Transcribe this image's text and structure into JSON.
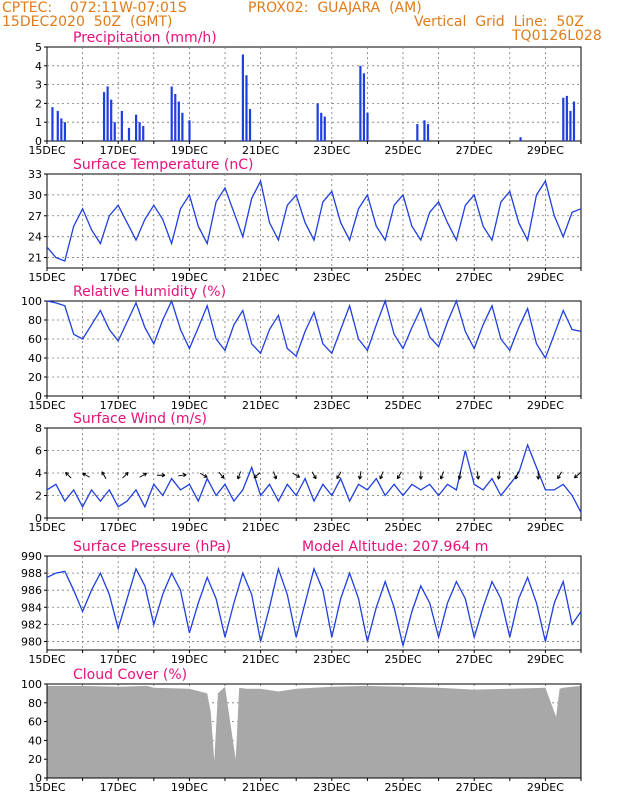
{
  "header": {
    "left_line1": "CPTEC:    072:11W-07:01S",
    "center_line1": "PROX02:  GUAJARA  (AM)",
    "left_line2": "15DEC2020  50Z  (GMT)",
    "right_line2": "Vertical  Grid  Line:  50Z",
    "right_line3": "TQ0126L028"
  },
  "colors": {
    "header": "#e07b1a",
    "title": "#e8107a",
    "series": "#1f3fe0",
    "cloud": "#a8a8a8"
  },
  "x_tick_labels": [
    "15DEC",
    "17DEC",
    "19DEC",
    "21DEC",
    "23DEC",
    "25DEC",
    "27DEC",
    "29DEC"
  ],
  "chart_data": [
    {
      "id": "precip",
      "type": "bar",
      "title": "Precipitation  (mm/h)",
      "ylim": [
        0,
        5
      ],
      "yticks": [
        0,
        1,
        2,
        3,
        4,
        5
      ],
      "xlim_days": [
        15,
        30
      ],
      "grid": true,
      "x": [
        15.15,
        15.3,
        15.4,
        15.5,
        16.6,
        16.7,
        16.8,
        16.9,
        17.1,
        17.3,
        17.5,
        17.6,
        17.7,
        18.5,
        18.6,
        18.7,
        18.8,
        19.0,
        20.5,
        20.6,
        20.7,
        22.6,
        22.7,
        22.8,
        23.8,
        23.9,
        24.0,
        25.4,
        25.6,
        25.7,
        28.3,
        29.5,
        29.6,
        29.7,
        29.8
      ],
      "values": [
        1.8,
        1.6,
        1.2,
        1.0,
        2.6,
        2.9,
        2.2,
        1.0,
        1.6,
        0.7,
        1.4,
        1.0,
        0.8,
        2.9,
        2.5,
        2.1,
        1.5,
        1.1,
        4.6,
        3.5,
        1.7,
        2.0,
        1.5,
        1.3,
        4.0,
        3.6,
        1.5,
        0.9,
        1.1,
        0.9,
        0.2,
        2.3,
        2.4,
        1.6,
        2.1
      ]
    },
    {
      "id": "temperature",
      "type": "line",
      "title": "Surface  Temperature  (nC)",
      "ylim": [
        19.5,
        33
      ],
      "yticks": [
        21,
        24,
        27,
        30,
        33
      ],
      "xlim_days": [
        15,
        30
      ],
      "grid": true,
      "x": [
        15.0,
        15.25,
        15.5,
        15.75,
        16.0,
        16.25,
        16.5,
        16.75,
        17.0,
        17.25,
        17.5,
        17.75,
        18.0,
        18.25,
        18.5,
        18.75,
        19.0,
        19.25,
        19.5,
        19.75,
        20.0,
        20.25,
        20.5,
        20.75,
        21.0,
        21.25,
        21.5,
        21.75,
        22.0,
        22.25,
        22.5,
        22.75,
        23.0,
        23.25,
        23.5,
        23.75,
        24.0,
        24.25,
        24.5,
        24.75,
        25.0,
        25.25,
        25.5,
        25.75,
        26.0,
        26.25,
        26.5,
        26.75,
        27.0,
        27.25,
        27.5,
        27.75,
        28.0,
        28.25,
        28.5,
        28.75,
        29.0,
        29.25,
        29.5,
        29.75,
        30.0
      ],
      "values": [
        22.5,
        21.0,
        20.5,
        25.5,
        28.0,
        25.0,
        23.0,
        27.0,
        28.5,
        26.0,
        23.5,
        26.5,
        28.5,
        26.5,
        23.0,
        28.0,
        30.0,
        25.5,
        23.0,
        29.0,
        31.0,
        27.5,
        24.0,
        29.5,
        32.0,
        26.0,
        23.5,
        28.5,
        30.0,
        26.0,
        23.5,
        29.0,
        30.5,
        26.0,
        23.5,
        28.0,
        30.0,
        25.5,
        23.5,
        28.5,
        30.0,
        25.5,
        23.5,
        27.5,
        29.0,
        26.0,
        23.5,
        28.5,
        30.0,
        25.5,
        23.5,
        29.0,
        30.5,
        26.0,
        23.5,
        30.0,
        32.0,
        27.0,
        24.0,
        27.5,
        28.0
      ]
    },
    {
      "id": "humidity",
      "type": "line",
      "title": "Relative  Humidity  (%)",
      "ylim": [
        0,
        100
      ],
      "yticks": [
        0,
        20,
        40,
        60,
        80,
        100
      ],
      "xlim_days": [
        15,
        30
      ],
      "grid": true,
      "x": [
        15.0,
        15.25,
        15.5,
        15.75,
        16.0,
        16.25,
        16.5,
        16.75,
        17.0,
        17.25,
        17.5,
        17.75,
        18.0,
        18.25,
        18.5,
        18.75,
        19.0,
        19.25,
        19.5,
        19.75,
        20.0,
        20.25,
        20.5,
        20.75,
        21.0,
        21.25,
        21.5,
        21.75,
        22.0,
        22.25,
        22.5,
        22.75,
        23.0,
        23.25,
        23.5,
        23.75,
        24.0,
        24.25,
        24.5,
        24.75,
        25.0,
        25.25,
        25.5,
        25.75,
        26.0,
        26.25,
        26.5,
        26.75,
        27.0,
        27.25,
        27.5,
        27.75,
        28.0,
        28.25,
        28.5,
        28.75,
        29.0,
        29.25,
        29.5,
        29.75,
        30.0
      ],
      "values": [
        100,
        98,
        95,
        65,
        60,
        75,
        90,
        70,
        58,
        78,
        98,
        72,
        55,
        80,
        100,
        70,
        50,
        72,
        95,
        60,
        48,
        75,
        90,
        55,
        45,
        70,
        85,
        50,
        42,
        68,
        88,
        55,
        45,
        70,
        95,
        60,
        48,
        75,
        100,
        65,
        50,
        72,
        92,
        62,
        52,
        78,
        100,
        68,
        50,
        75,
        95,
        60,
        48,
        72,
        92,
        55,
        40,
        65,
        90,
        70,
        68
      ]
    },
    {
      "id": "wind",
      "type": "line",
      "title": "Surface  Wind  (m/s)",
      "ylim": [
        0,
        8
      ],
      "yticks": [
        0,
        2,
        4,
        6,
        8
      ],
      "xlim_days": [
        15,
        30
      ],
      "grid": true,
      "x": [
        15.0,
        15.25,
        15.5,
        15.75,
        16.0,
        16.25,
        16.5,
        16.75,
        17.0,
        17.25,
        17.5,
        17.75,
        18.0,
        18.25,
        18.5,
        18.75,
        19.0,
        19.25,
        19.5,
        19.75,
        20.0,
        20.25,
        20.5,
        20.75,
        21.0,
        21.25,
        21.5,
        21.75,
        22.0,
        22.25,
        22.5,
        22.75,
        23.0,
        23.25,
        23.5,
        23.75,
        24.0,
        24.25,
        24.5,
        24.75,
        25.0,
        25.25,
        25.5,
        25.75,
        26.0,
        26.25,
        26.5,
        26.75,
        27.0,
        27.25,
        27.5,
        27.75,
        28.0,
        28.25,
        28.5,
        28.75,
        29.0,
        29.25,
        29.5,
        29.75,
        30.0
      ],
      "values": [
        2.5,
        3.0,
        1.5,
        2.5,
        1.0,
        2.5,
        1.5,
        2.5,
        1.0,
        1.5,
        2.5,
        1.0,
        3.0,
        2.0,
        3.5,
        2.5,
        3.0,
        1.5,
        3.5,
        2.0,
        3.0,
        1.5,
        2.5,
        4.5,
        2.0,
        3.0,
        1.5,
        3.0,
        2.0,
        3.5,
        1.5,
        3.0,
        2.0,
        3.5,
        1.5,
        3.0,
        2.5,
        3.5,
        2.0,
        3.0,
        2.0,
        3.0,
        2.5,
        3.0,
        2.0,
        3.0,
        2.5,
        6.0,
        3.0,
        2.5,
        3.5,
        2.0,
        3.0,
        4.0,
        6.5,
        4.5,
        2.5,
        2.5,
        3.0,
        2.0,
        0.5
      ],
      "arrow_x": [
        15.6,
        16.1,
        16.6,
        17.2,
        17.7,
        18.2,
        18.8,
        19.4,
        19.9,
        20.4,
        20.9,
        21.4,
        22.0,
        22.5,
        23.2,
        23.8,
        24.4,
        24.9,
        25.5,
        26.1,
        26.6,
        27.1,
        27.7,
        28.2,
        28.8,
        29.4,
        29.9
      ],
      "arrow_dir_deg": [
        315,
        300,
        330,
        45,
        60,
        90,
        80,
        120,
        140,
        200,
        230,
        160,
        120,
        150,
        210,
        190,
        200,
        210,
        180,
        200,
        190,
        170,
        190,
        200,
        180,
        210,
        230
      ]
    },
    {
      "id": "pressure",
      "type": "line",
      "title": "Surface  Pressure  (hPa)",
      "annotation": "Model  Altitude:  207.964  m",
      "ylim": [
        979,
        990
      ],
      "yticks": [
        980,
        982,
        984,
        986,
        988,
        990
      ],
      "xlim_days": [
        15,
        30
      ],
      "grid": true,
      "x": [
        15.0,
        15.25,
        15.5,
        15.75,
        16.0,
        16.25,
        16.5,
        16.75,
        17.0,
        17.25,
        17.5,
        17.75,
        18.0,
        18.25,
        18.5,
        18.75,
        19.0,
        19.25,
        19.5,
        19.75,
        20.0,
        20.25,
        20.5,
        20.75,
        21.0,
        21.25,
        21.5,
        21.75,
        22.0,
        22.25,
        22.5,
        22.75,
        23.0,
        23.25,
        23.5,
        23.75,
        24.0,
        24.25,
        24.5,
        24.75,
        25.0,
        25.25,
        25.5,
        25.75,
        26.0,
        26.25,
        26.5,
        26.75,
        27.0,
        27.25,
        27.5,
        27.75,
        28.0,
        28.25,
        28.5,
        28.75,
        29.0,
        29.25,
        29.5,
        29.75,
        30.0
      ],
      "values": [
        987.5,
        988.0,
        988.2,
        986.0,
        983.5,
        986.0,
        988.0,
        985.5,
        981.5,
        985.0,
        988.5,
        986.5,
        982.0,
        985.5,
        988.0,
        986.0,
        981.0,
        984.5,
        987.5,
        985.0,
        980.5,
        984.5,
        988.0,
        985.5,
        980.0,
        984.0,
        988.5,
        985.5,
        980.5,
        984.5,
        988.5,
        986.0,
        980.5,
        985.0,
        988.0,
        985.0,
        980.0,
        984.0,
        987.0,
        984.0,
        979.5,
        983.5,
        986.5,
        984.5,
        980.5,
        984.5,
        987.0,
        985.0,
        980.5,
        984.0,
        987.0,
        985.0,
        980.5,
        985.0,
        987.5,
        984.5,
        980.0,
        984.5,
        987.0,
        982.0,
        983.5
      ]
    },
    {
      "id": "cloud",
      "type": "area",
      "title": "Cloud  Cover  (%)",
      "ylim": [
        0,
        100
      ],
      "yticks": [
        0,
        20,
        40,
        60,
        80,
        100
      ],
      "xlim_days": [
        15,
        30
      ],
      "grid": true,
      "x": [
        15.0,
        16.0,
        17.0,
        17.8,
        18.0,
        19.0,
        19.5,
        19.6,
        19.7,
        19.8,
        20.0,
        20.3,
        20.4,
        20.6,
        21.0,
        21.5,
        22.0,
        23.0,
        24.0,
        25.0,
        26.0,
        27.0,
        28.0,
        29.0,
        29.3,
        29.4,
        29.5,
        30.0
      ],
      "values": [
        98,
        98,
        97,
        98,
        96,
        95,
        90,
        70,
        18,
        90,
        97,
        20,
        96,
        95,
        95,
        92,
        95,
        97,
        98,
        97,
        96,
        94,
        95,
        96,
        65,
        95,
        96,
        98
      ]
    }
  ]
}
